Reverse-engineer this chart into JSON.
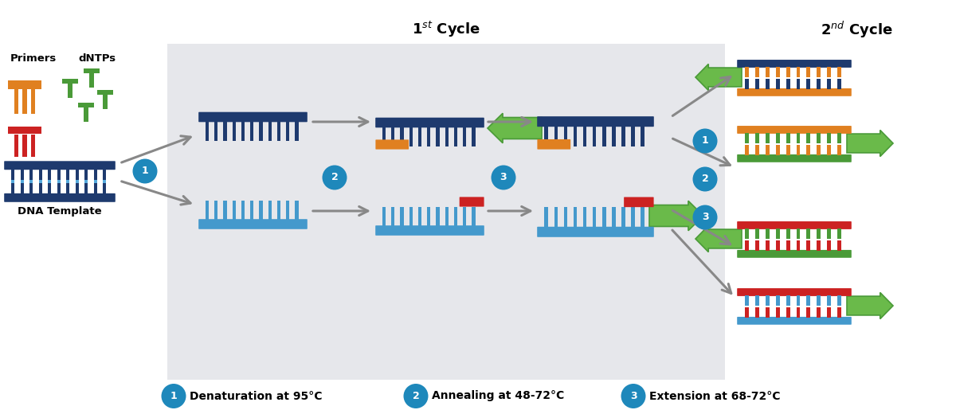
{
  "title_1st": "1$^{st}$ Cycle",
  "title_2nd": "2$^{nd}$ Cycle",
  "label_primers": "Primers",
  "label_dntps": "dNTPs",
  "label_dna": "DNA Template",
  "step1_label": "Denaturation at 95°C",
  "step2_label": "Annealing at 48-72°C",
  "step3_label": "Extension at 68-72°C",
  "colors": {
    "dark_blue": "#1e3a6e",
    "mid_blue": "#2255aa",
    "light_blue": "#4499cc",
    "sky_blue": "#55aadd",
    "orange": "#e08020",
    "red": "#cc2222",
    "dark_green": "#4a9a38",
    "light_green": "#a0d070",
    "gray_bg": "#e6e7eb",
    "gray_arrow": "#888888",
    "step_circle": "#1e88bb",
    "white": "#ffffff",
    "green_body": "#6aba4a",
    "green_edge": "#4a9a38"
  }
}
